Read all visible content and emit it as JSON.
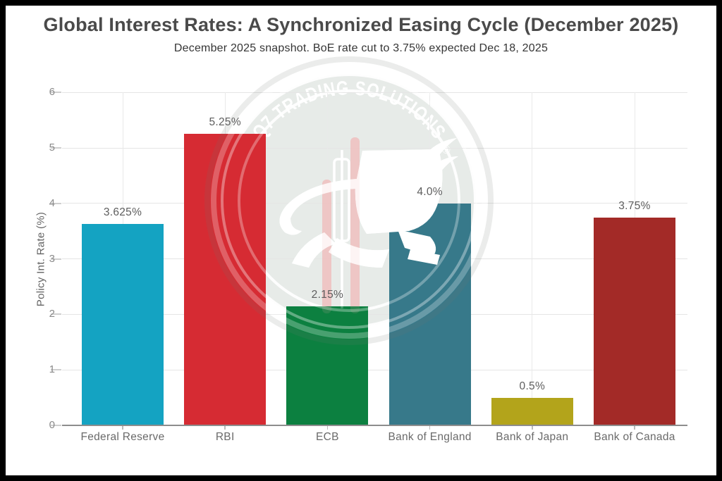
{
  "header": {
    "title": "Global Interest Rates: A Synchronized Easing Cycle (December 2025)",
    "subtitle": "December 2025 snapshot. BoE rate cut to 3.75% expected Dec 18, 2025"
  },
  "watermark": {
    "text": "Q7 TRADING SOLUTIONS",
    "registered_mark": "®",
    "icon": "bull-and-candlesticks-logo"
  },
  "chart_data": {
    "type": "bar",
    "categories": [
      "Federal Reserve",
      "RBI",
      "ECB",
      "Bank of England",
      "Bank of Japan",
      "Bank of Canada"
    ],
    "values": [
      3.625,
      5.25,
      2.15,
      4.0,
      0.5,
      3.75
    ],
    "value_labels": [
      "3.625%",
      "5.25%",
      "2.15%",
      "4.0%",
      "0.5%",
      "3.75%"
    ],
    "bar_colors": [
      "#14a3c2",
      "#d62b33",
      "#0c8040",
      "#37798a",
      "#b3a41b",
      "#a32a27"
    ],
    "title": "Global Interest Rates: A Synchronized Easing Cycle (December 2025)",
    "xlabel": "",
    "ylabel": "Policy Int. Rate (%)",
    "ylim": [
      0,
      6
    ],
    "yticks": [
      0,
      1,
      2,
      3,
      4,
      5,
      6
    ],
    "grid": true,
    "legend": false
  }
}
